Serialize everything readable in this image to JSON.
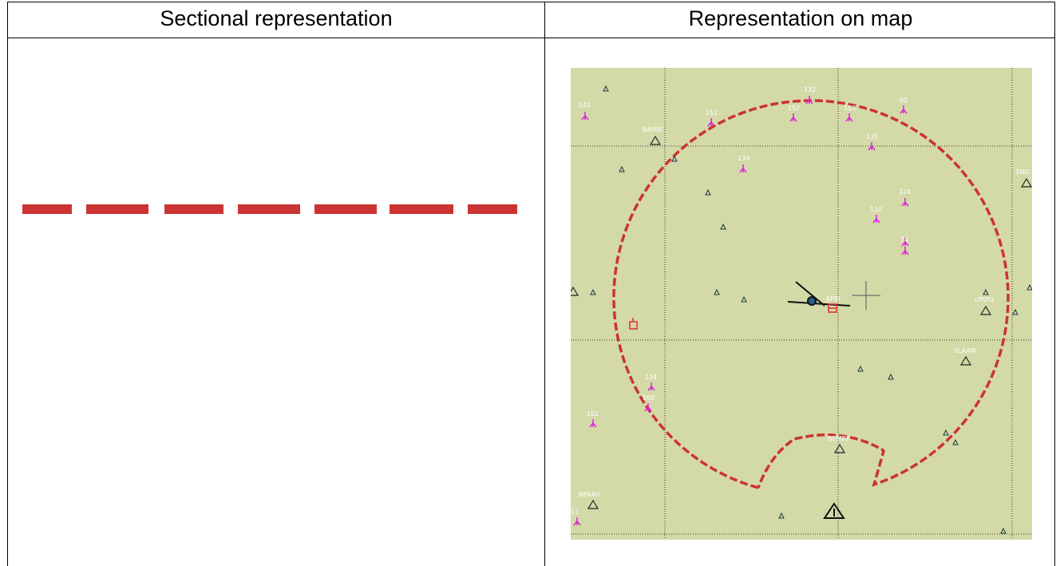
{
  "table": {
    "col1_header": "Sectional representation",
    "col2_header": "Representation on map"
  },
  "colors": {
    "dash": "#cc3333",
    "map_bg": "#d4d9a8",
    "obstacle": "#e020e0",
    "waypoint_small": "#1a3a3a"
  },
  "map": {
    "waypoint_labels": [
      "BAYBE",
      "SMG",
      "UPIPO",
      "SLAAM",
      "BEMRR",
      "BEKAH",
      "KPBI"
    ],
    "obstacle_heights": [
      "141",
      "132",
      "152",
      "157",
      "153",
      "95",
      "135",
      "139",
      "124",
      "110",
      "74",
      "134",
      "160",
      "101",
      "11"
    ]
  }
}
